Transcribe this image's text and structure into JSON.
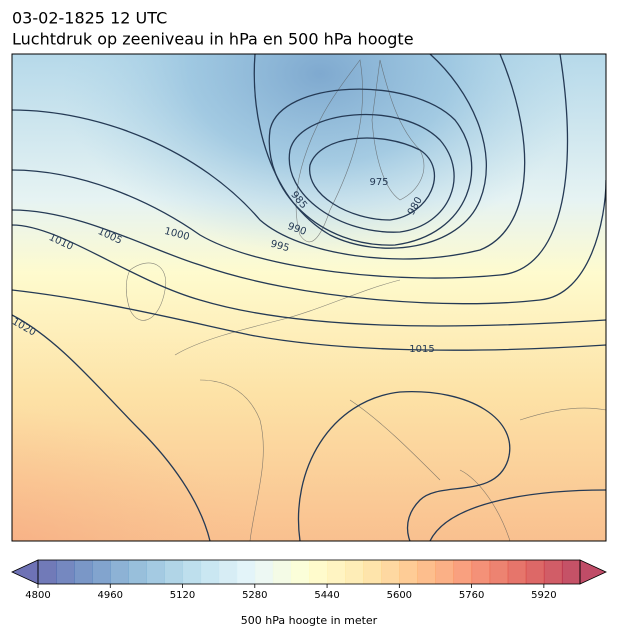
{
  "header": {
    "title": "03-02-1825 12 UTC",
    "subtitle": "Luchtdruk op zeeniveau in hPa en 500 hPa hoogte"
  },
  "map": {
    "isobar_labels": [
      "975",
      "980",
      "985",
      "990",
      "995",
      "1000",
      "1005",
      "1010",
      "1015",
      "1020"
    ]
  },
  "colorbar": {
    "label": "500 hPa hoogte in meter",
    "lim": [
      4800,
      6000
    ],
    "ticks": [
      4800,
      4960,
      5120,
      5280,
      5440,
      5600,
      5760,
      5920
    ],
    "colors": [
      "#313695",
      "#4575b4",
      "#74add1",
      "#abd9e9",
      "#e0f3f8",
      "#ffffbf",
      "#fee090",
      "#fdae61",
      "#f46d43",
      "#d73027",
      "#a50026"
    ]
  }
}
